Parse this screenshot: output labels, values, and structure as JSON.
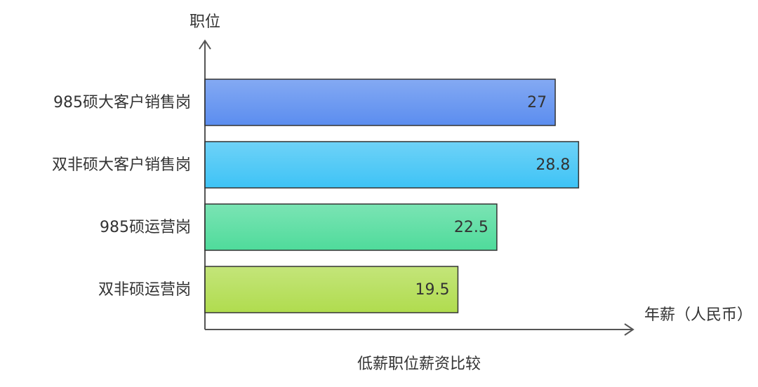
{
  "chart_data": {
    "type": "bar",
    "orientation": "horizontal",
    "title": "低薪职位薪资比较",
    "y_label": "职位",
    "x_label": "年薪（人民币）",
    "categories": [
      "985硕大客户销售岗",
      "双非硕大客户销售岗",
      "985硕运营岗",
      "双非硕运营岗"
    ],
    "values": [
      27,
      28.8,
      22.5,
      19.5
    ],
    "colors": [
      "#5b8def",
      "#3ec3f5",
      "#4fdb9b",
      "#b0dc4e"
    ],
    "xlim": [
      0,
      33
    ]
  }
}
